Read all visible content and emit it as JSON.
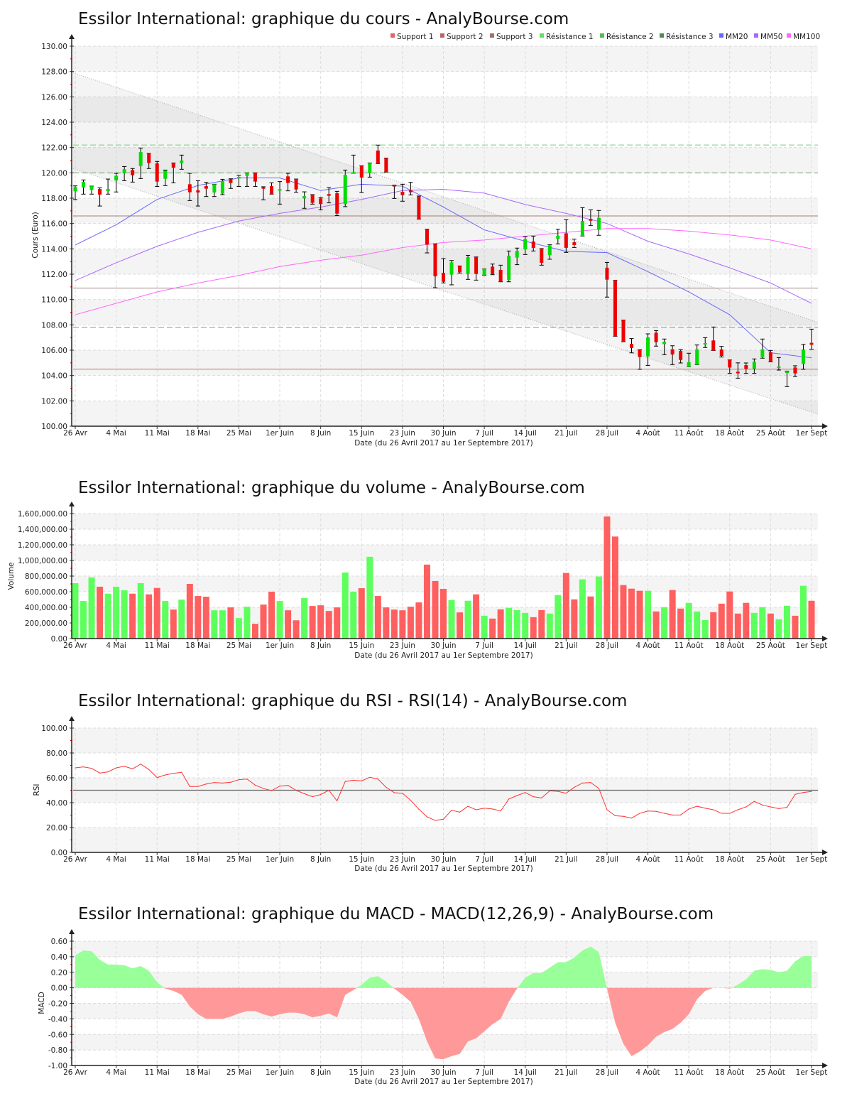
{
  "chart_data": [
    {
      "type": "candlestick",
      "title": "Essilor International: graphique du cours - AnalyBourse.com",
      "xlabel": "Date (du 26 Avril 2017 au 1er Septembre 2017)",
      "ylabel": "Cours (Euro)",
      "ylim": [
        100,
        130
      ],
      "yticks": [
        "100.00",
        "102.00",
        "104.00",
        "106.00",
        "108.00",
        "110.00",
        "112.00",
        "114.00",
        "116.00",
        "118.00",
        "120.00",
        "122.00",
        "124.00",
        "126.00",
        "128.00",
        "130.00"
      ],
      "xticks": {
        "index": [
          0,
          5,
          10,
          15,
          20,
          25,
          30,
          35,
          40,
          45,
          50,
          55,
          60,
          65,
          70,
          75,
          80,
          85,
          90
        ],
        "labels": [
          "26 Avr",
          "4 Mai",
          "11 Mai",
          "18 Mai",
          "25 Mai",
          "1er Juin",
          "8 Juin",
          "15 Juin",
          "23 Juin",
          "30 Juin",
          "7 Juil",
          "14 Juil",
          "21 Juil",
          "28 Juil",
          "4 Août",
          "11 Août",
          "18 Août",
          "25 Août",
          "1er Sept"
        ]
      },
      "colors": {
        "up": "#00dd00",
        "down": "#ee0000"
      },
      "legend": [
        {
          "label": "Support 1",
          "color": "#dd6666"
        },
        {
          "label": "Support 2",
          "color": "#bb6666"
        },
        {
          "label": "Support 3",
          "color": "#a07070"
        },
        {
          "label": "Résistance 1",
          "color": "#66dd66"
        },
        {
          "label": "Résistance 2",
          "color": "#55bb55"
        },
        {
          "label": "Résistance 3",
          "color": "#558855"
        },
        {
          "label": "MM20",
          "color": "#6666ff"
        },
        {
          "label": "MM50",
          "color": "#aa66ff"
        },
        {
          "label": "MM100",
          "color": "#ff66ff"
        }
      ],
      "levels": [
        {
          "name": "Support 1",
          "value": 104.5,
          "color": "#c87070",
          "style": "solid"
        },
        {
          "name": "Support 2",
          "value": 110.9,
          "color": "#a08888",
          "style": "solid"
        },
        {
          "name": "Support 3",
          "value": 116.6,
          "color": "#b07878",
          "style": "solid"
        },
        {
          "name": "Résistance 1",
          "value": 107.8,
          "color": "#66aa66",
          "style": "dashed"
        },
        {
          "name": "Résistance 2",
          "value": 120.0,
          "color": "#66aa66",
          "style": "dashed"
        },
        {
          "name": "Résistance 3",
          "value": 122.2,
          "color": "#77cc77",
          "style": "dashed"
        }
      ],
      "trend_channel": {
        "upper": [
          127.9,
          108.2
        ],
        "lower": [
          120.35,
          100.95
        ]
      },
      "ohlc": [
        [
          118.54,
          118.97,
          117.89,
          118.88
        ],
        [
          118.84,
          119.44,
          118.32,
          119.29
        ],
        [
          118.64,
          118.95,
          118.32,
          118.95
        ],
        [
          118.73,
          118.82,
          117.38,
          118.28
        ],
        [
          118.56,
          119.51,
          118.32,
          118.73
        ],
        [
          119.4,
          119.96,
          118.49,
          119.77
        ],
        [
          119.96,
          120.5,
          119.38,
          120.28
        ],
        [
          120.22,
          120.34,
          119.27,
          119.81
        ],
        [
          120.54,
          121.96,
          119.55,
          121.64
        ],
        [
          121.49,
          121.53,
          120.34,
          120.78
        ],
        [
          120.75,
          120.9,
          118.93,
          119.31
        ],
        [
          119.53,
          120.22,
          118.99,
          120.19
        ],
        [
          120.78,
          120.78,
          119.21,
          120.41
        ],
        [
          120.77,
          121.4,
          120.28,
          120.97
        ],
        [
          119.1,
          119.96,
          117.81,
          118.47
        ],
        [
          118.62,
          119.38,
          117.38,
          118.45
        ],
        [
          118.95,
          119.25,
          118.13,
          118.75
        ],
        [
          118.45,
          119.1,
          118.13,
          119.1
        ],
        [
          118.36,
          119.49,
          118.28,
          119.35
        ],
        [
          119.48,
          119.53,
          118.77,
          119.2
        ],
        [
          119.55,
          119.81,
          118.93,
          119.68
        ],
        [
          119.76,
          120.0,
          118.93,
          120.0
        ],
        [
          120.0,
          120.0,
          118.93,
          119.31
        ],
        [
          118.86,
          118.9,
          117.87,
          118.75
        ],
        [
          118.95,
          119.21,
          118.32,
          118.32
        ],
        [
          118.62,
          119.31,
          117.53,
          118.71
        ],
        [
          119.72,
          119.96,
          118.58,
          119.2
        ],
        [
          119.51,
          119.51,
          118.47,
          118.69
        ],
        [
          117.98,
          118.5,
          117.2,
          118.17
        ],
        [
          118.28,
          118.28,
          117.53,
          117.63
        ],
        [
          117.98,
          118.04,
          117.08,
          117.53
        ],
        [
          118.32,
          118.84,
          117.63,
          118.19
        ],
        [
          118.39,
          118.54,
          116.63,
          116.78
        ],
        [
          117.53,
          120.22,
          117.33,
          119.85
        ],
        [
          119.96,
          121.4,
          119.96,
          120.05
        ],
        [
          120.56,
          120.56,
          118.45,
          119.63
        ],
        [
          120.0,
          120.78,
          119.66,
          120.78
        ],
        [
          121.76,
          122.19,
          120.73,
          120.73
        ],
        [
          121.16,
          121.16,
          120.06,
          120.06
        ],
        [
          119.03,
          119.03,
          117.98,
          118.92
        ],
        [
          118.5,
          119.1,
          117.76,
          118.24
        ],
        [
          118.62,
          119.25,
          118.26,
          118.47
        ],
        [
          118.13,
          118.17,
          116.35,
          116.35
        ],
        [
          115.55,
          115.55,
          113.68,
          114.34
        ],
        [
          114.39,
          114.39,
          110.93,
          111.83
        ],
        [
          112.11,
          113.23,
          111.31,
          111.4
        ],
        [
          111.96,
          113.08,
          111.16,
          112.93
        ],
        [
          112.65,
          112.65,
          112.09,
          112.15
        ],
        [
          112.02,
          113.49,
          111.59,
          113.34
        ],
        [
          113.36,
          113.36,
          111.53,
          112.02
        ],
        [
          111.91,
          112.41,
          111.91,
          112.41
        ],
        [
          112.6,
          112.8,
          111.96,
          112.0
        ],
        [
          112.34,
          112.71,
          111.4,
          111.4
        ],
        [
          111.53,
          113.83,
          111.4,
          113.45
        ],
        [
          113.31,
          114.06,
          112.75,
          113.83
        ],
        [
          113.96,
          114.95,
          113.55,
          114.77
        ],
        [
          114.58,
          114.99,
          113.83,
          114.07
        ],
        [
          114.02,
          114.02,
          112.71,
          112.9
        ],
        [
          113.5,
          114.32,
          113.18,
          114.26
        ],
        [
          114.8,
          115.55,
          114.39,
          115.03
        ],
        [
          115.23,
          116.3,
          113.72,
          114.08
        ],
        [
          114.52,
          114.77,
          114.11,
          114.3
        ],
        [
          115.01,
          117.25,
          115.01,
          116.2
        ],
        [
          116.37,
          117.08,
          115.85,
          116.22
        ],
        [
          115.51,
          117.03,
          115.07,
          116.45
        ],
        [
          112.51,
          112.93,
          110.19,
          111.57
        ],
        [
          111.51,
          111.51,
          107.1,
          107.1
        ],
        [
          108.37,
          108.37,
          106.67,
          106.67
        ],
        [
          106.5,
          106.92,
          105.79,
          106.17
        ],
        [
          106.04,
          106.04,
          104.49,
          105.46
        ],
        [
          105.51,
          107.29,
          104.8,
          107.01
        ],
        [
          107.38,
          107.55,
          106.32,
          106.63
        ],
        [
          106.48,
          106.88,
          105.64,
          106.67
        ],
        [
          106.07,
          106.35,
          104.86,
          105.66
        ],
        [
          105.94,
          106.04,
          104.99,
          105.23
        ],
        [
          104.71,
          105.76,
          104.71,
          105.05
        ],
        [
          104.86,
          106.41,
          104.86,
          106.06
        ],
        [
          106.47,
          106.99,
          106.21,
          106.56
        ],
        [
          106.77,
          107.83,
          105.98,
          105.98
        ],
        [
          106.06,
          106.3,
          105.46,
          105.55
        ],
        [
          105.23,
          105.23,
          104.17,
          104.63
        ],
        [
          104.3,
          105.0,
          103.79,
          104.17
        ],
        [
          104.82,
          104.99,
          104.17,
          104.54
        ],
        [
          104.54,
          105.31,
          104.17,
          105.08
        ],
        [
          105.46,
          106.88,
          105.37,
          106.06
        ],
        [
          105.83,
          105.98,
          105.08,
          105.08
        ],
        [
          104.61,
          105.42,
          104.43,
          104.71
        ],
        [
          104.2,
          104.35,
          103.12,
          104.35
        ],
        [
          104.63,
          104.77,
          103.92,
          104.17
        ],
        [
          104.92,
          106.45,
          104.49,
          106.06
        ],
        [
          106.58,
          107.66,
          106.07,
          106.43
        ]
      ],
      "moving_averages": [
        {
          "name": "MM20",
          "color": "#6666ff",
          "index": [
            0,
            5,
            10,
            15,
            20,
            25,
            30,
            35,
            40,
            45,
            50,
            55,
            60,
            65,
            70,
            75,
            80,
            85,
            90
          ],
          "values": [
            114.3,
            115.9,
            117.9,
            119.0,
            119.6,
            119.6,
            118.6,
            119.1,
            118.95,
            117.3,
            115.5,
            114.6,
            113.8,
            113.7,
            112.2,
            110.6,
            108.8,
            105.8,
            105.4
          ]
        },
        {
          "name": "MM50",
          "color": "#aa66ff",
          "index": [
            0,
            5,
            10,
            15,
            20,
            25,
            30,
            35,
            40,
            45,
            50,
            55,
            60,
            65,
            70,
            75,
            80,
            85,
            90
          ],
          "values": [
            111.5,
            112.9,
            114.2,
            115.3,
            116.2,
            116.8,
            117.3,
            117.9,
            118.6,
            118.7,
            118.4,
            117.5,
            116.8,
            116.0,
            114.6,
            113.6,
            112.5,
            111.3,
            109.7
          ]
        },
        {
          "name": "MM100",
          "color": "#ff66ff",
          "index": [
            0,
            5,
            10,
            15,
            20,
            25,
            30,
            35,
            40,
            45,
            50,
            55,
            60,
            65,
            70,
            75,
            80,
            85,
            90
          ],
          "values": [
            108.8,
            109.7,
            110.6,
            111.3,
            111.9,
            112.6,
            113.1,
            113.5,
            114.1,
            114.5,
            114.7,
            115.0,
            115.3,
            115.6,
            115.6,
            115.4,
            115.1,
            114.7,
            114.0
          ]
        }
      ]
    },
    {
      "type": "bar",
      "title": "Essilor International: graphique du volume - AnalyBourse.com",
      "xlabel": "Date (du 26 Avril 2017 au 1er Septembre 2017)",
      "ylabel": "Volume",
      "ylim": [
        0,
        1600000
      ],
      "yticks": [
        "0.00",
        "200,000.00",
        "400,000.00",
        "600,000.00",
        "800,000.00",
        "1,000,000.00",
        "1,200,000.00",
        "1,400,000.00",
        "1,600,000.00"
      ],
      "values": [
        709000,
        481000,
        782000,
        664000,
        575000,
        664000,
        618000,
        575000,
        709000,
        566000,
        648000,
        481000,
        371000,
        499000,
        700000,
        545000,
        536000,
        362000,
        362000,
        399000,
        262000,
        408000,
        189000,
        435000,
        600000,
        481000,
        362000,
        234000,
        518000,
        417000,
        426000,
        353000,
        399000,
        846000,
        600000,
        645000,
        1047000,
        545000,
        399000,
        371000,
        362000,
        408000,
        463000,
        947000,
        737000,
        636000,
        493000,
        335000,
        484000,
        566000,
        292000,
        256000,
        374000,
        393000,
        365000,
        329000,
        274000,
        365000,
        320000,
        557000,
        840000,
        502000,
        758000,
        539000,
        794000,
        1562000,
        1306000,
        685000,
        639000,
        612000,
        612000,
        347000,
        402000,
        621000,
        384000,
        457000,
        347000,
        237000,
        338000,
        447000,
        603000,
        320000,
        457000,
        329000,
        402000,
        320000,
        247000,
        420000,
        292000,
        676000,
        484000
      ],
      "colors": {
        "up": "#5dff5d",
        "down": "#ff5f5f"
      }
    },
    {
      "type": "line",
      "title": "Essilor International: graphique du RSI - RSI(14) - AnalyBourse.com",
      "xlabel": "Date (du 26 Avril 2017 au 1er Septembre 2017)",
      "ylabel": "RSI",
      "ylim": [
        0,
        100
      ],
      "yticks": [
        "0.00",
        "20.00",
        "40.00",
        "60.00",
        "80.00",
        "100.00"
      ],
      "reference": 50,
      "color": "#ff3333",
      "values": [
        68.0,
        68.8,
        67.6,
        63.8,
        64.8,
        68.0,
        69.3,
        67.2,
        71.0,
        66.7,
        60.2,
        62.3,
        63.6,
        64.4,
        53.0,
        53.0,
        55.0,
        56.2,
        55.8,
        56.4,
        58.5,
        59.0,
        54.1,
        51.4,
        49.7,
        53.3,
        53.9,
        49.9,
        47.2,
        44.8,
        46.5,
        50.0,
        41.5,
        57.0,
        58.1,
        57.5,
        60.4,
        59.0,
        52.4,
        48.0,
        47.6,
        41.9,
        34.7,
        28.6,
        25.7,
        26.7,
        33.9,
        32.4,
        37.1,
        34.3,
        35.6,
        34.9,
        33.3,
        42.9,
        45.7,
        48.2,
        44.8,
        43.8,
        49.5,
        49.1,
        47.6,
        52.4,
        55.8,
        56.2,
        51.4,
        34.3,
        29.5,
        29.0,
        27.6,
        31.4,
        33.3,
        33.0,
        31.4,
        30.1,
        30.1,
        34.9,
        37.1,
        35.6,
        34.3,
        31.4,
        31.4,
        34.3,
        36.6,
        41.0,
        38.1,
        36.6,
        35.2,
        36.2,
        46.7,
        48.2,
        49.0
      ]
    },
    {
      "type": "area",
      "title": "Essilor International: graphique du MACD - MACD(12,26,9) - AnalyBourse.com",
      "xlabel": "Date (du 26 Avril 2017 au 1er Septembre 2017)",
      "ylabel": "MACD",
      "ylim": [
        -1.0,
        0.6
      ],
      "yticks": [
        "-1.00",
        "-0.80",
        "-0.60",
        "-0.40",
        "-0.20",
        "0.00",
        "0.20",
        "0.40",
        "0.60"
      ],
      "colors": {
        "positive": "#99ff99",
        "negative": "#ff9999"
      },
      "values": [
        0.42,
        0.48,
        0.47,
        0.36,
        0.3,
        0.3,
        0.29,
        0.25,
        0.28,
        0.22,
        0.07,
        -0.01,
        -0.04,
        -0.09,
        -0.24,
        -0.34,
        -0.4,
        -0.4,
        -0.4,
        -0.37,
        -0.33,
        -0.3,
        -0.3,
        -0.34,
        -0.37,
        -0.34,
        -0.32,
        -0.32,
        -0.34,
        -0.38,
        -0.36,
        -0.33,
        -0.38,
        -0.09,
        -0.03,
        0.04,
        0.13,
        0.15,
        0.08,
        -0.01,
        -0.09,
        -0.18,
        -0.4,
        -0.69,
        -0.91,
        -0.92,
        -0.88,
        -0.85,
        -0.69,
        -0.65,
        -0.56,
        -0.47,
        -0.4,
        -0.18,
        -0.01,
        0.13,
        0.19,
        0.19,
        0.26,
        0.33,
        0.33,
        0.39,
        0.48,
        0.53,
        0.46,
        -0.01,
        -0.45,
        -0.72,
        -0.88,
        -0.82,
        -0.74,
        -0.63,
        -0.57,
        -0.53,
        -0.45,
        -0.34,
        -0.15,
        -0.04,
        0.0,
        0.0,
        -0.01,
        0.04,
        0.11,
        0.22,
        0.24,
        0.23,
        0.2,
        0.22,
        0.34,
        0.41,
        0.41
      ]
    }
  ]
}
